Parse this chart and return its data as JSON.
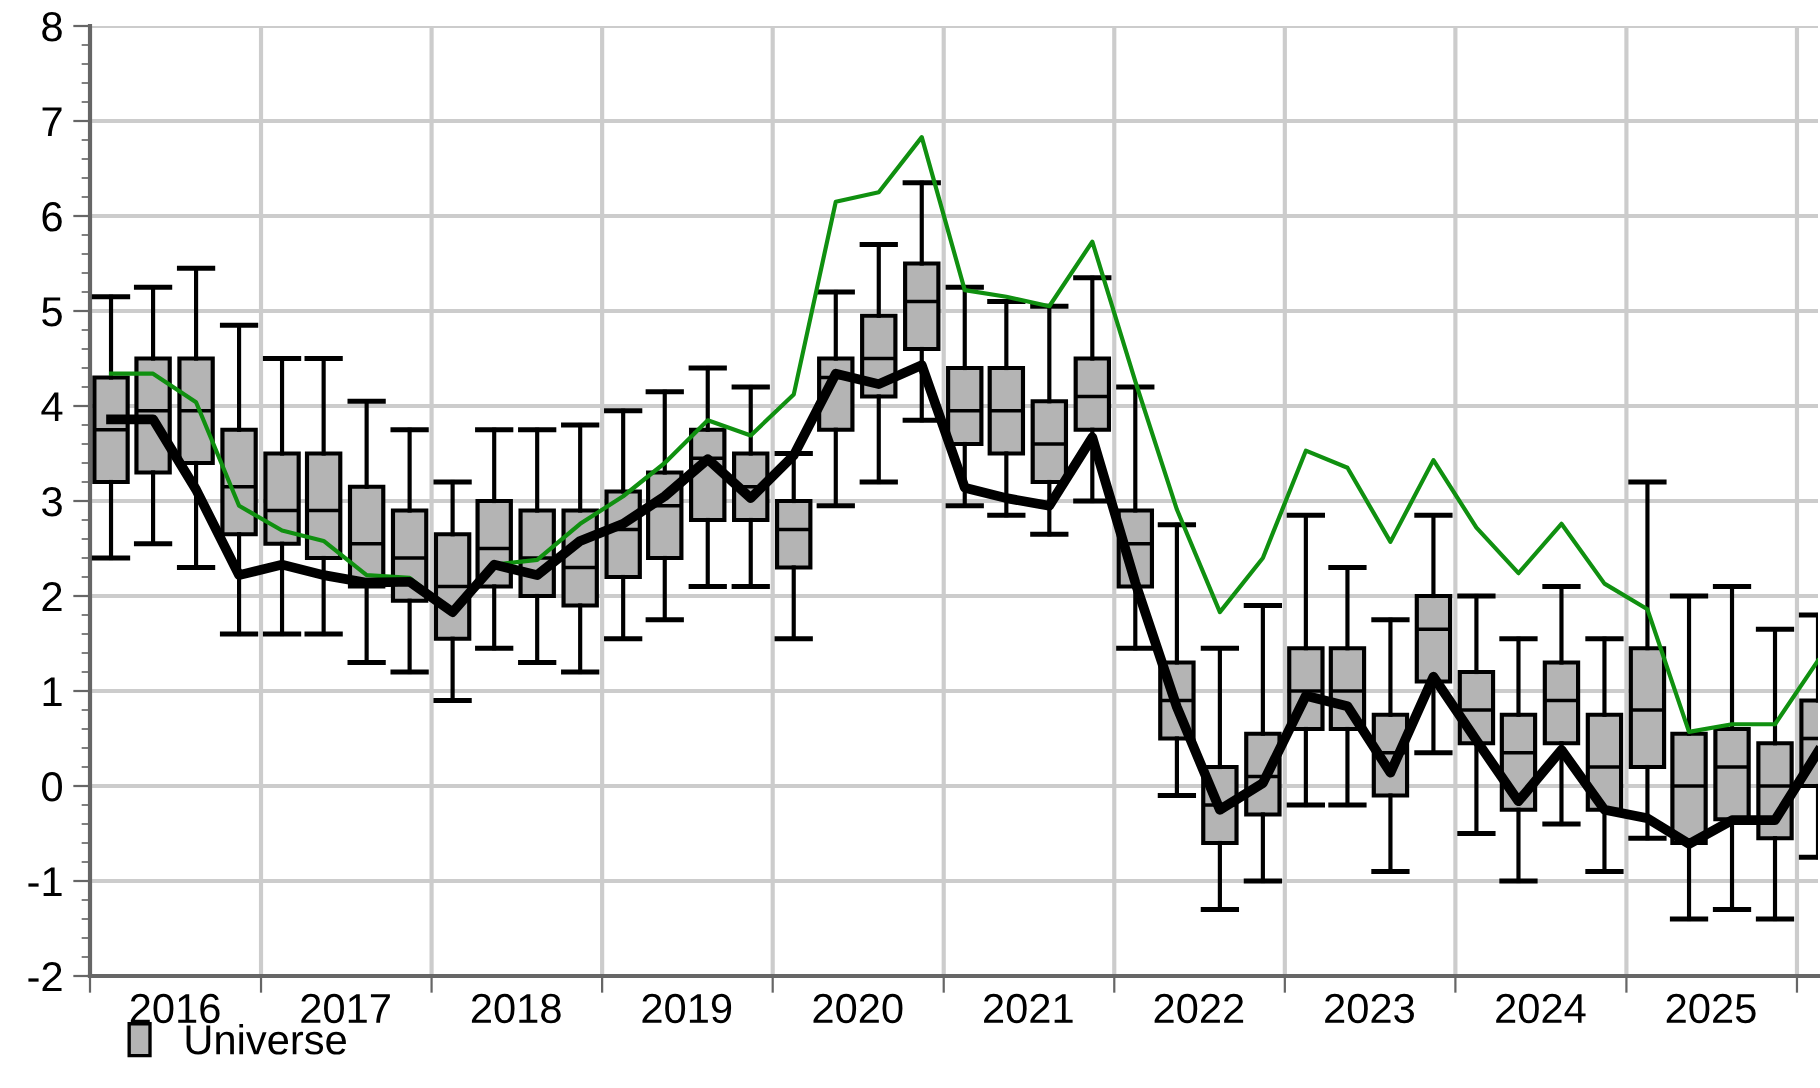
{
  "chart_data": {
    "type": "box",
    "x": [
      "2016-02-15",
      "2016-05-15",
      "2016-08-15",
      "2016-11-15",
      "2017-02-15",
      "2017-05-15",
      "2017-08-15",
      "2017-11-15",
      "2018-02-15",
      "2018-05-15",
      "2018-08-15",
      "2018-11-15",
      "2019-02-15",
      "2019-05-15",
      "2019-08-15",
      "2019-11-15",
      "2020-02-15",
      "2020-05-15",
      "2020-08-15",
      "2020-11-15",
      "2021-02-15",
      "2021-05-15",
      "2021-08-15",
      "2021-11-15",
      "2022-02-15",
      "2022-05-15",
      "2022-08-15",
      "2022-11-15",
      "2023-02-15",
      "2023-05-15",
      "2023-08-15",
      "2023-11-15",
      "2024-02-15",
      "2024-05-15",
      "2024-08-15",
      "2024-11-15",
      "2025-02-15",
      "2025-05-15",
      "2025-08-15",
      "2025-11-15",
      "2026-02-15"
    ],
    "xlim": [
      "2016-01-01",
      "2026-02-15"
    ],
    "xticks": [
      {
        "value": "2016-01-01",
        "label": null
      },
      {
        "value": "2016-07-01",
        "label": "2016"
      },
      {
        "value": "2017-01-01",
        "label": null
      },
      {
        "value": "2017-07-01",
        "label": "2017"
      },
      {
        "value": "2018-01-01",
        "label": null
      },
      {
        "value": "2018-07-01",
        "label": "2018"
      },
      {
        "value": "2019-01-01",
        "label": null
      },
      {
        "value": "2019-07-01",
        "label": "2019"
      },
      {
        "value": "2020-01-01",
        "label": null
      },
      {
        "value": "2020-07-01",
        "label": "2020"
      },
      {
        "value": "2021-01-01",
        "label": null
      },
      {
        "value": "2021-07-01",
        "label": "2021"
      },
      {
        "value": "2022-01-01",
        "label": null
      },
      {
        "value": "2022-07-01",
        "label": "2022"
      },
      {
        "value": "2023-01-01",
        "label": null
      },
      {
        "value": "2023-07-01",
        "label": "2023"
      },
      {
        "value": "2024-01-01",
        "label": null
      },
      {
        "value": "2024-07-01",
        "label": "2024"
      },
      {
        "value": "2025-01-01",
        "label": null
      },
      {
        "value": "2025-07-01",
        "label": "2025"
      },
      {
        "value": "2026-01-01",
        "label": null
      }
    ],
    "ylim": [
      -2,
      8
    ],
    "yticks": [
      -2,
      -1,
      0,
      1,
      2,
      3,
      4,
      5,
      6,
      7,
      8
    ],
    "grid": true,
    "legend": "bottom left",
    "series": [
      {
        "name": "Universe",
        "color": "#b4b4b4",
        "boxes": [
          {
            "low": 2.4,
            "q1": 3.2,
            "median": 3.75,
            "q3": 4.3,
            "high": 5.15
          },
          {
            "low": 2.55,
            "q1": 3.3,
            "median": 3.95,
            "q3": 4.5,
            "high": 5.25
          },
          {
            "low": 2.3,
            "q1": 3.4,
            "median": 3.95,
            "q3": 4.5,
            "high": 5.45
          },
          {
            "low": 1.6,
            "q1": 2.65,
            "median": 3.15,
            "q3": 3.75,
            "high": 4.85
          },
          {
            "low": 1.6,
            "q1": 2.55,
            "median": 2.9,
            "q3": 3.5,
            "high": 4.5
          },
          {
            "low": 1.6,
            "q1": 2.4,
            "median": 2.9,
            "q3": 3.5,
            "high": 4.5
          },
          {
            "low": 1.3,
            "q1": 2.1,
            "median": 2.55,
            "q3": 3.15,
            "high": 4.05
          },
          {
            "low": 1.2,
            "q1": 1.95,
            "median": 2.4,
            "q3": 2.9,
            "high": 3.75
          },
          {
            "low": 0.9,
            "q1": 1.55,
            "median": 2.1,
            "q3": 2.65,
            "high": 3.2
          },
          {
            "low": 1.45,
            "q1": 2.1,
            "median": 2.5,
            "q3": 3.0,
            "high": 3.75
          },
          {
            "low": 1.3,
            "q1": 2.0,
            "median": 2.4,
            "q3": 2.9,
            "high": 3.75
          },
          {
            "low": 1.2,
            "q1": 1.9,
            "median": 2.3,
            "q3": 2.9,
            "high": 3.8
          },
          {
            "low": 1.55,
            "q1": 2.2,
            "median": 2.7,
            "q3": 3.1,
            "high": 3.95
          },
          {
            "low": 1.75,
            "q1": 2.4,
            "median": 2.95,
            "q3": 3.3,
            "high": 4.15
          },
          {
            "low": 2.1,
            "q1": 2.8,
            "median": 3.45,
            "q3": 3.75,
            "high": 4.4
          },
          {
            "low": 2.1,
            "q1": 2.8,
            "median": 3.15,
            "q3": 3.5,
            "high": 4.2
          },
          {
            "low": 1.55,
            "q1": 2.3,
            "median": 2.7,
            "q3": 3.0,
            "high": 3.5
          },
          {
            "low": 2.95,
            "q1": 3.75,
            "median": 4.3,
            "q3": 4.5,
            "high": 5.2
          },
          {
            "low": 3.2,
            "q1": 4.1,
            "median": 4.5,
            "q3": 4.95,
            "high": 5.7
          },
          {
            "low": 3.85,
            "q1": 4.6,
            "median": 5.1,
            "q3": 5.5,
            "high": 6.35
          },
          {
            "low": 2.95,
            "q1": 3.6,
            "median": 3.95,
            "q3": 4.4,
            "high": 5.25
          },
          {
            "low": 2.85,
            "q1": 3.5,
            "median": 3.95,
            "q3": 4.4,
            "high": 5.1
          },
          {
            "low": 2.65,
            "q1": 3.2,
            "median": 3.6,
            "q3": 4.05,
            "high": 5.05
          },
          {
            "low": 3.0,
            "q1": 3.75,
            "median": 4.1,
            "q3": 4.5,
            "high": 5.35
          },
          {
            "low": 1.45,
            "q1": 2.1,
            "median": 2.55,
            "q3": 2.9,
            "high": 4.2
          },
          {
            "low": -0.1,
            "q1": 0.5,
            "median": 0.9,
            "q3": 1.3,
            "high": 2.75
          },
          {
            "low": -1.3,
            "q1": -0.6,
            "median": -0.2,
            "q3": 0.2,
            "high": 1.45
          },
          {
            "low": -1.0,
            "q1": -0.3,
            "median": 0.1,
            "q3": 0.55,
            "high": 1.9
          },
          {
            "low": -0.2,
            "q1": 0.6,
            "median": 1.0,
            "q3": 1.45,
            "high": 2.85
          },
          {
            "low": -0.2,
            "q1": 0.6,
            "median": 1.0,
            "q3": 1.45,
            "high": 2.3
          },
          {
            "low": -0.9,
            "q1": -0.1,
            "median": 0.35,
            "q3": 0.75,
            "high": 1.75
          },
          {
            "low": 0.35,
            "q1": 1.1,
            "median": 1.65,
            "q3": 2.0,
            "high": 2.85
          },
          {
            "low": -0.5,
            "q1": 0.45,
            "median": 0.8,
            "q3": 1.2,
            "high": 2.0
          },
          {
            "low": -1.0,
            "q1": -0.25,
            "median": 0.35,
            "q3": 0.75,
            "high": 1.55
          },
          {
            "low": -0.4,
            "q1": 0.45,
            "median": 0.9,
            "q3": 1.3,
            "high": 2.1
          },
          {
            "low": -0.9,
            "q1": -0.25,
            "median": 0.2,
            "q3": 0.75,
            "high": 1.55
          },
          {
            "low": -0.55,
            "q1": 0.2,
            "median": 0.8,
            "q3": 1.45,
            "high": 3.2
          },
          {
            "low": -1.4,
            "q1": -0.6,
            "median": 0.0,
            "q3": 0.55,
            "high": 2.0
          },
          {
            "low": -1.3,
            "q1": -0.35,
            "median": 0.2,
            "q3": 0.6,
            "high": 2.1
          },
          {
            "low": -1.4,
            "q1": -0.55,
            "median": 0.0,
            "q3": 0.45,
            "high": 1.65
          },
          {
            "low": -0.75,
            "q1": 0.0,
            "median": 0.5,
            "q3": 0.9,
            "high": 1.8
          }
        ]
      },
      {
        "type": "line",
        "color": "#109010",
        "values": [
          4.34,
          4.34,
          4.04,
          2.95,
          2.69,
          2.58,
          2.22,
          2.19,
          1.83,
          2.33,
          2.38,
          2.76,
          3.05,
          3.4,
          3.85,
          3.69,
          4.12,
          6.15,
          6.25,
          6.83,
          5.22,
          5.15,
          5.05,
          5.73,
          4.26,
          2.91,
          1.83,
          2.4,
          3.53,
          3.35,
          2.57,
          3.43,
          2.72,
          2.24,
          2.76,
          2.13,
          1.86,
          0.57,
          0.65,
          0.65,
          1.32
        ]
      },
      {
        "type": "line",
        "color": "#000000",
        "values": [
          3.86,
          3.86,
          3.12,
          2.22,
          2.33,
          2.22,
          2.14,
          2.15,
          1.83,
          2.33,
          2.22,
          2.58,
          2.76,
          3.05,
          3.44,
          3.03,
          3.48,
          4.34,
          4.23,
          4.43,
          3.14,
          3.03,
          2.95,
          3.67,
          2.14,
          0.83,
          -0.25,
          0.03,
          0.95,
          0.84,
          0.14,
          1.15,
          0.48,
          -0.16,
          0.38,
          -0.25,
          -0.34,
          -0.61,
          -0.36,
          -0.36,
          0.36
        ]
      }
    ]
  }
}
